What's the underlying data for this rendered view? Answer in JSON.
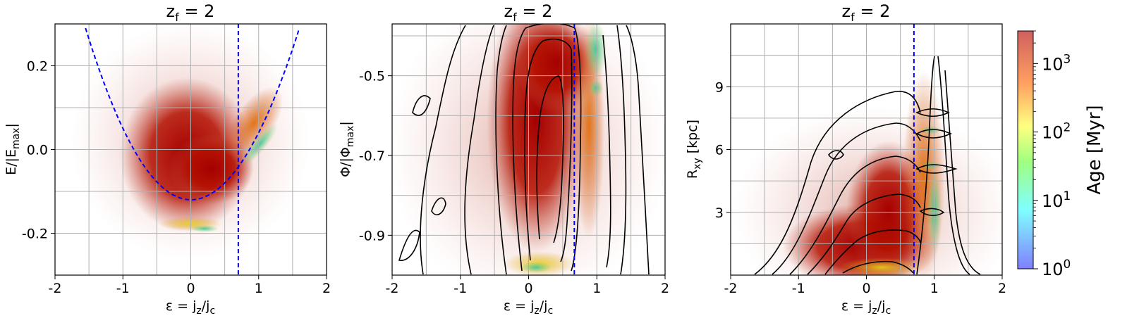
{
  "chart_data": [
    {
      "type": "scatter",
      "title": "z_f = 2",
      "title_parts": {
        "base": "z",
        "sub": "f",
        "rest": " = 2"
      },
      "xlabel_parts": {
        "base": "ε = j",
        "sub1": "z",
        "mid": "/j",
        "sub2": "c"
      },
      "ylabel_parts": {
        "base": "E/|E",
        "sub": "max",
        "rest": "|"
      },
      "xlim": [
        -2,
        2
      ],
      "ylim": [
        -0.3,
        0.3
      ],
      "xticks": [
        -2,
        -1,
        0,
        1,
        2
      ],
      "xtick_labels": [
        "-2",
        "-1",
        "0",
        "1",
        "2"
      ],
      "yticks": [
        -0.2,
        0.0,
        0.2
      ],
      "ytick_labels": [
        "-0.2",
        "0.0",
        "0.2"
      ],
      "grid": true,
      "color_by": "Age [Myr]",
      "vertical_line": {
        "x": 0.7,
        "style": "dashed",
        "color": "#0000ff"
      },
      "parabola_curve": {
        "vertex": [
          0,
          -0.12
        ],
        "passes_through": [
          [
            -1.55,
            0.29
          ],
          [
            1.6,
            0.29
          ]
        ],
        "style": "dashed",
        "color": "#0000ff"
      },
      "has_contours": false
    },
    {
      "type": "scatter",
      "title": "z_f = 2",
      "title_parts": {
        "base": "z",
        "sub": "f",
        "rest": " = 2"
      },
      "xlabel_parts": {
        "base": "ε = j",
        "sub1": "z",
        "mid": "/j",
        "sub2": "c"
      },
      "ylabel_parts": {
        "base": "Φ/|Φ",
        "sub": "max",
        "rest": "|"
      },
      "xlim": [
        -2,
        2
      ],
      "ylim": [
        -1.0,
        -0.37
      ],
      "xticks": [
        -2,
        -1,
        0,
        1,
        2
      ],
      "xtick_labels": [
        "-2",
        "-1",
        "0",
        "1",
        "2"
      ],
      "yticks": [
        -0.9,
        -0.7,
        -0.5
      ],
      "ytick_labels": [
        "-0.9",
        "-0.7",
        "-0.5"
      ],
      "grid": true,
      "color_by": "Age [Myr]",
      "vertical_line": {
        "x": 0.67,
        "style": "dashed",
        "color": "#0000ff"
      },
      "has_contours": true
    },
    {
      "type": "scatter",
      "title": "z_f = 2",
      "title_parts": {
        "base": "z",
        "sub": "f",
        "rest": " = 2"
      },
      "xlabel_parts": {
        "base": "ε = j",
        "sub1": "z",
        "mid": "/j",
        "sub2": "c"
      },
      "ylabel_parts": {
        "base": "R",
        "sub": "xy",
        "rest": " [kpc]"
      },
      "xlim": [
        -2,
        2
      ],
      "ylim": [
        0,
        12
      ],
      "xticks": [
        -2,
        -1,
        0,
        1,
        2
      ],
      "xtick_labels": [
        "-2",
        "-1",
        "0",
        "1",
        "2"
      ],
      "yticks": [
        3,
        6,
        9
      ],
      "ytick_labels": [
        "3",
        "6",
        "9"
      ],
      "grid": true,
      "color_by": "Age [Myr]",
      "vertical_line": {
        "x": 0.7,
        "style": "dashed",
        "color": "#0000ff"
      },
      "has_contours": true
    }
  ],
  "colorbar": {
    "label": "Age [Myr]",
    "scale": "log",
    "range": [
      1,
      3000
    ],
    "ticks": [
      {
        "value": 1,
        "base": "10",
        "exp": "0"
      },
      {
        "value": 10,
        "base": "10",
        "exp": "1"
      },
      {
        "value": 100,
        "base": "10",
        "exp": "2"
      },
      {
        "value": 1000,
        "base": "10",
        "exp": "3"
      }
    ],
    "colormap": [
      "#2b2bff",
      "#00ffff",
      "#7fff00",
      "#ffff00",
      "#ff8000",
      "#b00000"
    ]
  }
}
